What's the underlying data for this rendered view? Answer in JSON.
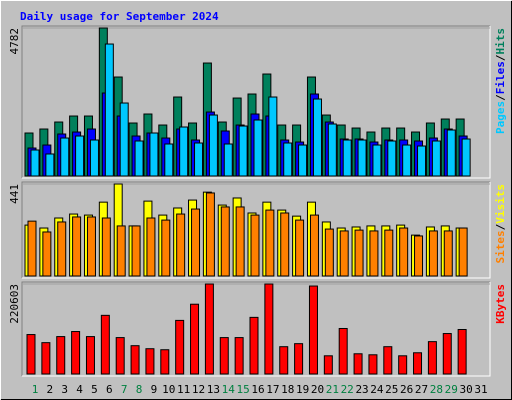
{
  "chart_data": [
    {
      "type": "bar",
      "title": "Daily usage for September 2024",
      "legend_separator": "/",
      "ylim": [
        0,
        4782
      ],
      "yticks": [
        4782
      ],
      "series": [
        {
          "name": "Hits",
          "color": "#00805c",
          "values": [
            1389,
            1518,
            1744,
            1938,
            1938,
            4782,
            3198,
            1712,
            2003,
            1647,
            2552,
            1712,
            3650,
            1744,
            2519,
            2649,
            3295,
            1647,
            1647,
            3198,
            1970,
            1647,
            1550,
            1421,
            1550,
            1550,
            1421,
            1712,
            1841,
            1841,
            null
          ]
        },
        {
          "name": "Files",
          "color": "#0000ff",
          "values": [
            904,
            1001,
            1357,
            1421,
            1518,
            2681,
            1938,
            1292,
            1389,
            1227,
            1518,
            1163,
            2067,
            1454,
            1647,
            2003,
            1938,
            1163,
            1098,
            2649,
            1744,
            1195,
            1195,
            1098,
            1163,
            1163,
            1131,
            1227,
            1518,
            1292,
            null
          ]
        },
        {
          "name": "Pages",
          "color": "#00c8ff",
          "values": [
            840,
            711,
            1227,
            1292,
            1163,
            4264,
            2358,
            1131,
            1389,
            1034,
            1583,
            1066,
            1970,
            1034,
            1615,
            1809,
            2552,
            1066,
            1001,
            2487,
            1680,
            1163,
            1163,
            1001,
            1131,
            1001,
            969,
            1131,
            1486,
            1195,
            null
          ]
        }
      ]
    },
    {
      "type": "bar",
      "legend_separator": "/",
      "ylim": [
        0,
        441
      ],
      "yticks": [
        441
      ],
      "series": [
        {
          "name": "Visits",
          "color": "#ffff00",
          "values": [
            244,
            230,
            278,
            297,
            292,
            354,
            441,
            240,
            359,
            292,
            326,
            364,
            402,
            340,
            374,
            302,
            354,
            316,
            287,
            354,
            259,
            230,
            235,
            240,
            240,
            244,
            196,
            235,
            240,
            230,
            null
          ]
        },
        {
          "name": "Sites",
          "color": "#ff8000",
          "values": [
            263,
            211,
            259,
            283,
            283,
            278,
            240,
            240,
            278,
            268,
            297,
            321,
            398,
            331,
            331,
            292,
            316,
            302,
            268,
            292,
            225,
            216,
            220,
            216,
            220,
            230,
            192,
            216,
            216,
            230,
            null
          ]
        }
      ]
    },
    {
      "type": "bar",
      "ylim": [
        0,
        220603
      ],
      "yticks": [
        220603
      ],
      "series": [
        {
          "name": "KBytes",
          "color": "#ff0000",
          "values": [
            96681,
            76849,
            91723,
            104118,
            91723,
            143782,
            89244,
            69412,
            61975,
            59496,
            131387,
            171051,
            220603,
            89244,
            89244,
            138824,
            220603,
            66933,
            74370,
            215673,
            44622,
            111555,
            49580,
            47101,
            66933,
            44622,
            52059,
            79328,
            99160,
            109076,
            null
          ]
        }
      ],
      "categories": [
        "1",
        "2",
        "3",
        "4",
        "5",
        "6",
        "7",
        "8",
        "9",
        "10",
        "11",
        "12",
        "13",
        "14",
        "15",
        "16",
        "17",
        "18",
        "19",
        "20",
        "21",
        "22",
        "23",
        "24",
        "25",
        "26",
        "27",
        "28",
        "29",
        "30",
        "31"
      ],
      "category_colors": [
        "#008040",
        "#000000",
        "#000000",
        "#000000",
        "#000000",
        "#000000",
        "#008040",
        "#008040",
        "#000000",
        "#000000",
        "#000000",
        "#000000",
        "#000000",
        "#008040",
        "#008040",
        "#000000",
        "#000000",
        "#000000",
        "#000000",
        "#000000",
        "#008040",
        "#008040",
        "#000000",
        "#000000",
        "#000000",
        "#000000",
        "#000000",
        "#008040",
        "#008040",
        "#000000",
        "#000000"
      ]
    }
  ]
}
